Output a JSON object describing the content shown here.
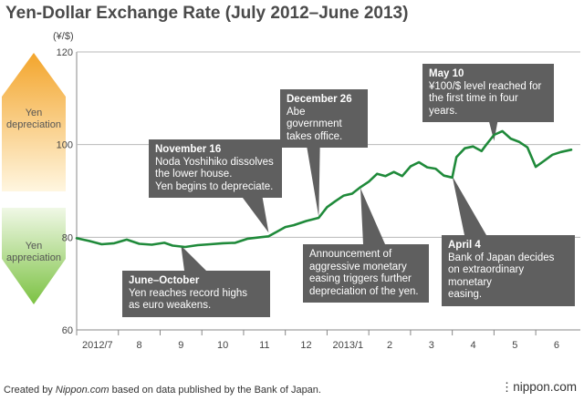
{
  "chart_data": {
    "type": "line",
    "title": "Yen-Dollar Exchange Rate (July 2012–June 2013)",
    "ylabel": "(¥/$)",
    "ylim": [
      60,
      120
    ],
    "yticks": [
      60,
      80,
      100,
      120
    ],
    "x_range": [
      0,
      11.85
    ],
    "categories": [
      "2012/7",
      "8",
      "9",
      "10",
      "11",
      "12",
      "2013/1",
      "2",
      "3",
      "4",
      "5",
      "6"
    ],
    "series": [
      {
        "name": "Yen-Dollar rate",
        "color": "#1f8a3a",
        "x": [
          0,
          0.3,
          0.6,
          0.9,
          1.2,
          1.5,
          1.8,
          2.1,
          2.3,
          2.6,
          2.9,
          3.2,
          3.5,
          3.8,
          4.1,
          4.4,
          4.6,
          4.8,
          5.0,
          5.2,
          5.5,
          5.8,
          6.0,
          6.2,
          6.4,
          6.6,
          6.8,
          7.0,
          7.2,
          7.4,
          7.6,
          7.8,
          8.0,
          8.2,
          8.4,
          8.6,
          8.8,
          9.0,
          9.1,
          9.3,
          9.5,
          9.7,
          9.8,
          10.0,
          10.2,
          10.4,
          10.6,
          10.8,
          11.0,
          11.2,
          11.4,
          11.6,
          11.85
        ],
        "values": [
          79.8,
          79.2,
          78.5,
          78.7,
          79.5,
          78.6,
          78.4,
          78.8,
          78.2,
          77.9,
          78.3,
          78.5,
          78.7,
          78.8,
          79.7,
          80.0,
          80.2,
          81.2,
          82.2,
          82.6,
          83.5,
          84.2,
          86.5,
          87.8,
          89.0,
          89.4,
          90.8,
          92.0,
          93.7,
          93.2,
          94.1,
          93.2,
          95.3,
          96.2,
          95.1,
          94.8,
          93.3,
          92.9,
          97.3,
          99.2,
          99.6,
          98.6,
          99.8,
          102.1,
          102.9,
          101.3,
          100.6,
          99.4,
          95.2,
          96.5,
          97.8,
          98.4,
          98.9
        ]
      }
    ],
    "annotations": [
      {
        "heading": "June–October",
        "text": "Yen reaches record highs\nas euro weakens.",
        "x": 2.5,
        "y": 78.2
      },
      {
        "heading": "November 16",
        "text": "Noda Yoshihiko dissolves\nthe lower house.\nYen begins to depreciate.",
        "x": 4.6,
        "y": 81.0
      },
      {
        "heading": "December 26",
        "text": "Abe government\ntakes office.",
        "x": 5.8,
        "y": 84.4
      },
      {
        "heading": "",
        "text": "Announcement of\naggressive monetary\neasing triggers further\ndepreciation of the yen.",
        "x": 6.8,
        "y": 90.6
      },
      {
        "heading": "April 4",
        "text": "Bank of Japan decides\non extraordinary monetary\neasing.",
        "x": 9.0,
        "y": 93.2
      },
      {
        "heading": "May 10",
        "text": "¥100/$ level reached for\nthe first time in four years.",
        "x": 10.0,
        "y": 100.8
      }
    ]
  },
  "side_scale": {
    "top_label": "Yen depreciation",
    "bottom_label": "Yen appreciation",
    "top_color": "#f3a52c",
    "bottom_color": "#7cc243"
  },
  "footer": {
    "credit_prefix": "Created by ",
    "credit_source": "Nippon.com",
    "credit_suffix": " based on data published by the Bank of Japan.",
    "brand": "nippon.com"
  }
}
